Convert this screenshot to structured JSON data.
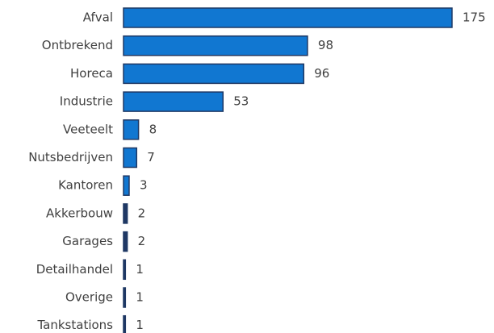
{
  "chart_data": {
    "type": "bar",
    "orientation": "horizontal",
    "title": "",
    "xlabel": "",
    "ylabel": "",
    "grid": false,
    "legend": "none",
    "bar_color": "#1177d1",
    "bar_border_color": "#1f3864",
    "categories": [
      "Afval",
      "Ontbrekend",
      "Horeca",
      "Industrie",
      "Veeteelt",
      "Nutsbedrijven",
      "Kantoren",
      "Akkerbouw",
      "Garages",
      "Detailhandel",
      "Overige",
      "Tankstations"
    ],
    "values": [
      175,
      98,
      96,
      53,
      8,
      7,
      3,
      2,
      2,
      1,
      1,
      1
    ],
    "value_labels": [
      "175",
      "98",
      "96",
      "53",
      "8",
      "7",
      "3",
      "2",
      "2",
      "1",
      "1",
      "1"
    ],
    "xlim": [
      0,
      175
    ]
  }
}
